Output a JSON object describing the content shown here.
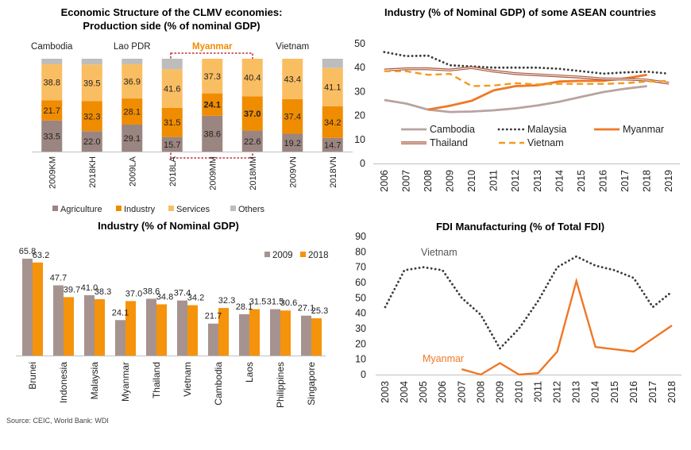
{
  "source": "Source: CEIC, World Bank: WDI",
  "colors": {
    "agriculture": "#9b8580",
    "industry": "#f08c00",
    "services": "#fabe62",
    "others": "#bdbdbd",
    "cambodia": "#b8a3a0",
    "malaysia": "#3a3a3a",
    "myanmar": "#ef7826",
    "thailand": "#a6543a",
    "vietnam": "#f59a1e",
    "bar2009": "#a69390",
    "bar2018": "#f5930a",
    "highlight": "#c0303a",
    "axis": "#bfbfbf",
    "text": "#222222"
  },
  "chart_data": [
    {
      "type": "bar",
      "stacked": true,
      "title": "Economic Structure of the CLMV economies:",
      "subtitle": "Production side (% of nominal GDP)",
      "groups": [
        "Cambodia",
        "Lao PDR",
        "Myanmar",
        "Vietnam"
      ],
      "highlight_group": "Myanmar",
      "categories": [
        "2009KM",
        "2018KH",
        "2009LA",
        "2018LA",
        "2009MM",
        "2018MM",
        "2009VN",
        "2018VN"
      ],
      "series": [
        {
          "name": "Agriculture",
          "values": [
            33.5,
            22.0,
            29.1,
            15.7,
            38.6,
            22.6,
            19.2,
            14.7
          ]
        },
        {
          "name": "Industry",
          "values": [
            21.7,
            32.3,
            28.1,
            31.5,
            24.1,
            37.0,
            37.4,
            34.2
          ]
        },
        {
          "name": "Services",
          "values": [
            38.8,
            39.5,
            36.9,
            41.6,
            37.3,
            40.4,
            43.4,
            41.1
          ]
        },
        {
          "name": "Others",
          "values": [
            6.0,
            6.2,
            5.9,
            11.2,
            0,
            0,
            0,
            10.0
          ]
        }
      ],
      "labels": {
        "Agriculture": [
          "33.5",
          "22.0",
          "29.1",
          "15.7",
          "38.6",
          "22.6",
          "19.2",
          "14.7"
        ],
        "Industry": [
          "21.7",
          "32.3",
          "28.1",
          "31.5",
          "24.1",
          "37.0",
          "37.4",
          "34.2"
        ],
        "Services": [
          "38.8",
          "39.5",
          "36.9",
          "41.6",
          "37.3",
          "40.4",
          "43.4",
          "41.1"
        ]
      },
      "bold_labels": [
        "24.1",
        "37.0"
      ],
      "ylim": [
        0,
        100
      ],
      "legend_position": "bottom"
    },
    {
      "type": "line",
      "title": "Industry (% of Nominal GDP) of some ASEAN countries",
      "x": [
        "2006",
        "2007",
        "2008",
        "2009",
        "2010",
        "2011",
        "2012",
        "2013",
        "2014",
        "2015",
        "2016",
        "2017",
        "2018",
        "2019"
      ],
      "ylim": [
        0,
        50
      ],
      "yticks": [
        0,
        10,
        20,
        30,
        40,
        50
      ],
      "legend_position": "bottom",
      "series": [
        {
          "name": "Cambodia",
          "style": "solid",
          "values": [
            26.5,
            25,
            22.5,
            21.5,
            21.7,
            22.2,
            23,
            24.2,
            25.8,
            27.8,
            29.8,
            31.2,
            32.3,
            null
          ]
        },
        {
          "name": "Malaysia",
          "style": "dotted",
          "values": [
            46.5,
            44.8,
            45,
            41,
            40.5,
            40,
            40,
            40,
            39.5,
            38.5,
            37.5,
            38,
            38.3,
            37.5
          ]
        },
        {
          "name": "Myanmar",
          "style": "solid-thick",
          "values": [
            null,
            null,
            22.5,
            24.1,
            26.2,
            30.5,
            32.3,
            32.6,
            34.2,
            34.5,
            34.5,
            35.5,
            37.0,
            null
          ]
        },
        {
          "name": "Thailand",
          "style": "double",
          "values": [
            39,
            39.5,
            39.5,
            39,
            40,
            38.5,
            37.5,
            37,
            36.5,
            36,
            35.3,
            35.2,
            34.8,
            33.5
          ]
        },
        {
          "name": "Vietnam",
          "style": "dashed",
          "values": [
            38.5,
            38.5,
            37,
            37.4,
            32.3,
            32.5,
            33.5,
            33,
            33.2,
            33.2,
            33.2,
            33.5,
            34.2,
            34.5
          ]
        }
      ]
    },
    {
      "type": "bar",
      "title": "Industry (% of Nominal GDP)",
      "categories": [
        "Brunei",
        "Indonesia",
        "Malaysia",
        "Myanmar",
        "Thailand",
        "Vietnam",
        "Cambodia",
        "Laos",
        "Philippines",
        "Singapore"
      ],
      "series": [
        {
          "name": "2009",
          "values": [
            65.8,
            47.7,
            41.0,
            24.1,
            38.6,
            37.4,
            21.7,
            28.1,
            31.5,
            27.1
          ]
        },
        {
          "name": "2018",
          "values": [
            63.2,
            39.7,
            38.3,
            37.0,
            34.8,
            34.2,
            32.3,
            31.5,
            30.6,
            25.3
          ]
        }
      ],
      "labels": {
        "2009": [
          "65.8",
          "47.7",
          "41.0",
          "24.1",
          "38.6",
          "37.4",
          "21.7",
          "28.1",
          "31.5",
          "27.1"
        ],
        "2018": [
          "63.2",
          "39.7",
          "38.3",
          "37.0",
          "34.8",
          "34.2",
          "32.3",
          "31.5",
          "30.6",
          "25.3"
        ]
      },
      "ylim": [
        0,
        70
      ],
      "legend_position": "top-right"
    },
    {
      "type": "line",
      "title": "FDI Manufacturing (% of Total FDI)",
      "x": [
        "2003",
        "2004",
        "2005",
        "2006",
        "2007",
        "2008",
        "2009",
        "2010",
        "2011",
        "2012",
        "2013",
        "2014",
        "2015",
        "2016",
        "2017",
        "2018"
      ],
      "ylim": [
        0,
        90
      ],
      "yticks": [
        0,
        10,
        20,
        30,
        40,
        50,
        60,
        70,
        80,
        90
      ],
      "series": [
        {
          "name": "Vietnam",
          "style": "dotted",
          "values": [
            44,
            68,
            70,
            68,
            50,
            39,
            17,
            30,
            48,
            70,
            77,
            71,
            68,
            63,
            44,
            54
          ]
        },
        {
          "name": "Myanmar",
          "style": "solid",
          "values": [
            null,
            null,
            null,
            null,
            3.5,
            0,
            7.5,
            0,
            1,
            15,
            61,
            18,
            16.5,
            15,
            23.5,
            32
          ]
        }
      ]
    }
  ]
}
